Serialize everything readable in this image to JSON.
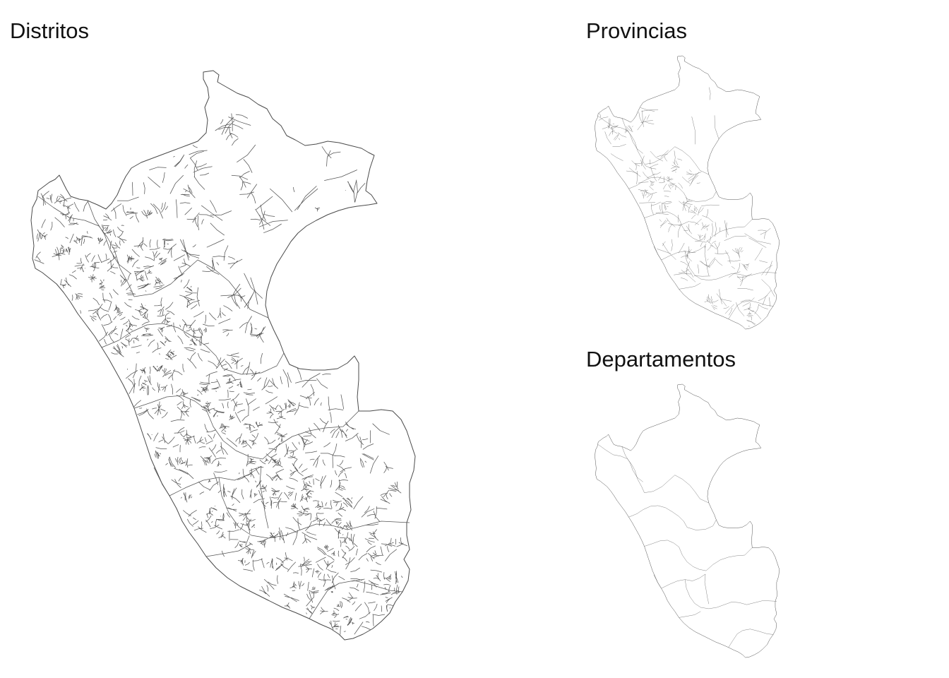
{
  "panels": [
    {
      "id": "distritos",
      "title": "Distritos",
      "level": "district"
    },
    {
      "id": "provincias",
      "title": "Provincias",
      "level": "province"
    },
    {
      "id": "departamentos",
      "title": "Departamentos",
      "level": "department"
    }
  ],
  "style": {
    "background": "#ffffff",
    "border_color": "#4a4a4a",
    "fill": "#ffffff"
  }
}
